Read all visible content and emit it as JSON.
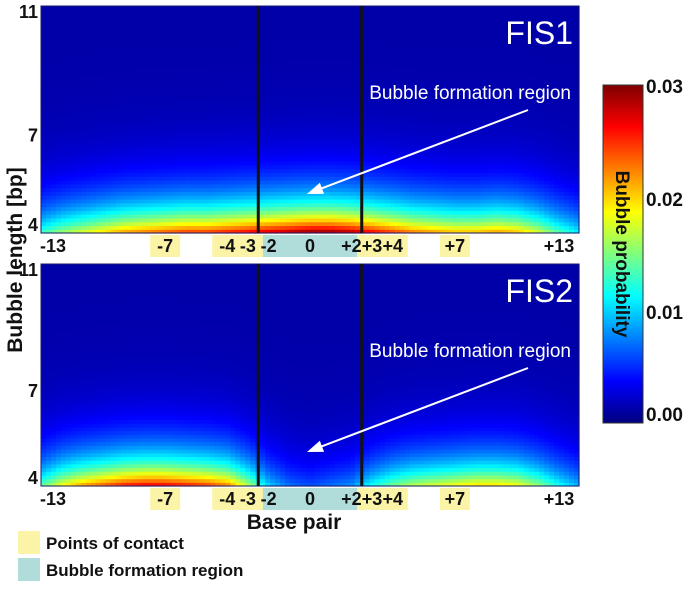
{
  "figure": {
    "shared_xlabel": "Base pair",
    "shared_ylabel": "Bubble length [bp]"
  },
  "colorbar": {
    "label": "Bubble probability",
    "ticks": [
      "0.03",
      "0.02",
      "0.01",
      "0.00"
    ],
    "range": [
      0.0,
      0.03
    ],
    "colormap": [
      "#00007f",
      "#0000ff",
      "#007fff",
      "#00ffff",
      "#7fff7f",
      "#ffff00",
      "#ff7f00",
      "#ff0000",
      "#7f0000"
    ]
  },
  "legend": {
    "items": [
      {
        "label": "Points of contact",
        "color": "#fbf3a6"
      },
      {
        "label": "Bubble formation region",
        "color": "#b0dcd9"
      }
    ]
  },
  "chart_data": [
    {
      "type": "heatmap",
      "title": "FIS1",
      "annotation": "Bubble formation region",
      "xlim": [
        -13,
        13
      ],
      "ylim": [
        4,
        11
      ],
      "y_ticks": [
        "11",
        "7",
        "4"
      ],
      "x_tick_labels": [
        "-13",
        "-7",
        "-4",
        "-3",
        "-2",
        "0",
        "+2",
        "+3",
        "+4",
        "+7",
        "+13"
      ],
      "x_tick_positions": [
        -13,
        -7,
        -4,
        -3,
        -2,
        0,
        2,
        3,
        4,
        7,
        13
      ],
      "points_of_contact": [
        -7,
        -4,
        -3,
        3,
        4,
        7
      ],
      "bubble_region": [
        -2,
        0,
        2
      ],
      "region_lines": [
        -2.5,
        2.5
      ],
      "probability_at_length_4": [
        0.012,
        0.015,
        0.017,
        0.019,
        0.021,
        0.022,
        0.023,
        0.024,
        0.024,
        0.025,
        0.026,
        0.027,
        0.028,
        0.029,
        0.029,
        0.028,
        0.026,
        0.024,
        0.022,
        0.021,
        0.02,
        0.02,
        0.021,
        0.02,
        0.017,
        0.013,
        0.01
      ]
    },
    {
      "type": "heatmap",
      "title": "FIS2",
      "annotation": "Bubble formation region",
      "xlim": [
        -13,
        13
      ],
      "ylim": [
        4,
        11
      ],
      "y_ticks": [
        "11",
        "7",
        "4"
      ],
      "x_tick_labels": [
        "-13",
        "-7",
        "-4",
        "-3",
        "-2",
        "0",
        "+2",
        "+3",
        "+4",
        "+7",
        "+13"
      ],
      "x_tick_positions": [
        -13,
        -7,
        -4,
        -3,
        -2,
        0,
        2,
        3,
        4,
        7,
        13
      ],
      "points_of_contact": [
        -7,
        -4,
        -3,
        3,
        4,
        7
      ],
      "bubble_region": [
        -2,
        0,
        2
      ],
      "region_lines": [
        -2.5,
        2.5
      ],
      "probability_at_length_4": [
        0.013,
        0.018,
        0.021,
        0.023,
        0.025,
        0.026,
        0.026,
        0.025,
        0.024,
        0.022,
        0.016,
        0.009,
        0.006,
        0.005,
        0.006,
        0.007,
        0.011,
        0.014,
        0.016,
        0.017,
        0.018,
        0.019,
        0.019,
        0.018,
        0.015,
        0.011,
        0.008
      ]
    }
  ]
}
